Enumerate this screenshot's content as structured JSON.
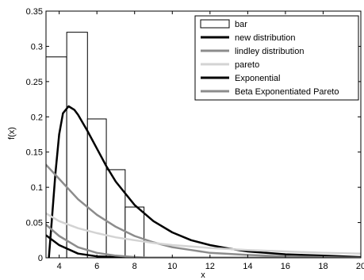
{
  "chart_data": {
    "type": "line",
    "title": "",
    "xlabel": "x",
    "ylabel": "f(x)",
    "xlim": [
      3.3,
      20
    ],
    "ylim": [
      0,
      0.35
    ],
    "x_ticks": [
      4,
      6,
      8,
      10,
      12,
      14,
      16,
      18,
      20
    ],
    "y_ticks": [
      0,
      0.05,
      0.1,
      0.15,
      0.2,
      0.25,
      0.3,
      0.35
    ],
    "grid": false,
    "legend_position": "top-right",
    "histogram": {
      "name": "bar",
      "bins": [
        {
          "x0": 3.3,
          "x1": 4.4,
          "value": 0.285
        },
        {
          "x0": 4.4,
          "x1": 5.5,
          "value": 0.32
        },
        {
          "x0": 5.5,
          "x1": 6.5,
          "value": 0.197
        },
        {
          "x0": 6.5,
          "x1": 7.5,
          "value": 0.125
        },
        {
          "x0": 7.5,
          "x1": 8.5,
          "value": 0.072
        }
      ]
    },
    "series": [
      {
        "name": "new distribution",
        "color": "#000000",
        "width": 2.5,
        "x": [
          3.45,
          3.6,
          3.8,
          4.0,
          4.2,
          4.5,
          4.8,
          5.0,
          5.5,
          6.0,
          6.5,
          7.0,
          8.0,
          9.0,
          10.0,
          11.0,
          12.0,
          13.0,
          14.0,
          16.0,
          18.0,
          20.0
        ],
        "y": [
          0.0,
          0.05,
          0.12,
          0.175,
          0.205,
          0.215,
          0.21,
          0.203,
          0.18,
          0.155,
          0.13,
          0.108,
          0.075,
          0.052,
          0.036,
          0.025,
          0.018,
          0.013,
          0.009,
          0.005,
          0.003,
          0.001
        ]
      },
      {
        "name": "lindley distribution",
        "color": "#8c8c8c",
        "width": 2.5,
        "x": [
          3.3,
          4,
          5,
          6,
          7,
          8,
          9,
          10,
          11,
          12,
          14,
          16,
          18,
          20
        ],
        "y": [
          0.132,
          0.112,
          0.083,
          0.061,
          0.044,
          0.031,
          0.022,
          0.015,
          0.011,
          0.007,
          0.004,
          0.002,
          0.001,
          0.0
        ]
      },
      {
        "name": "pareto",
        "color": "#d3d3d3",
        "width": 2.5,
        "x": [
          3.3,
          4,
          5,
          6,
          7,
          8,
          9,
          10,
          11,
          12,
          14,
          16,
          18,
          20
        ],
        "y": [
          0.063,
          0.052,
          0.042,
          0.035,
          0.029,
          0.025,
          0.021,
          0.018,
          0.016,
          0.014,
          0.011,
          0.009,
          0.007,
          0.006
        ]
      },
      {
        "name": "Exponential",
        "color": "#000000",
        "width": 2.5,
        "x": [
          3.3,
          4,
          5,
          6,
          7,
          8,
          9,
          10,
          12,
          14,
          16,
          18,
          20
        ],
        "y": [
          0.032,
          0.018,
          0.006,
          0.002,
          0.001,
          0.0,
          0.0,
          0.0,
          0.0,
          0.0,
          0.0,
          0.0,
          0.0
        ]
      },
      {
        "name": "Beta Exponentiated Pareto",
        "color": "#8c8c8c",
        "width": 2.5,
        "x": [
          3.3,
          4,
          5,
          6,
          7,
          8,
          9,
          10,
          12,
          14,
          16,
          18,
          20
        ],
        "y": [
          0.047,
          0.031,
          0.015,
          0.007,
          0.003,
          0.001,
          0.0,
          0.0,
          0.0,
          0.0,
          0.0,
          0.0,
          0.0
        ]
      }
    ]
  }
}
